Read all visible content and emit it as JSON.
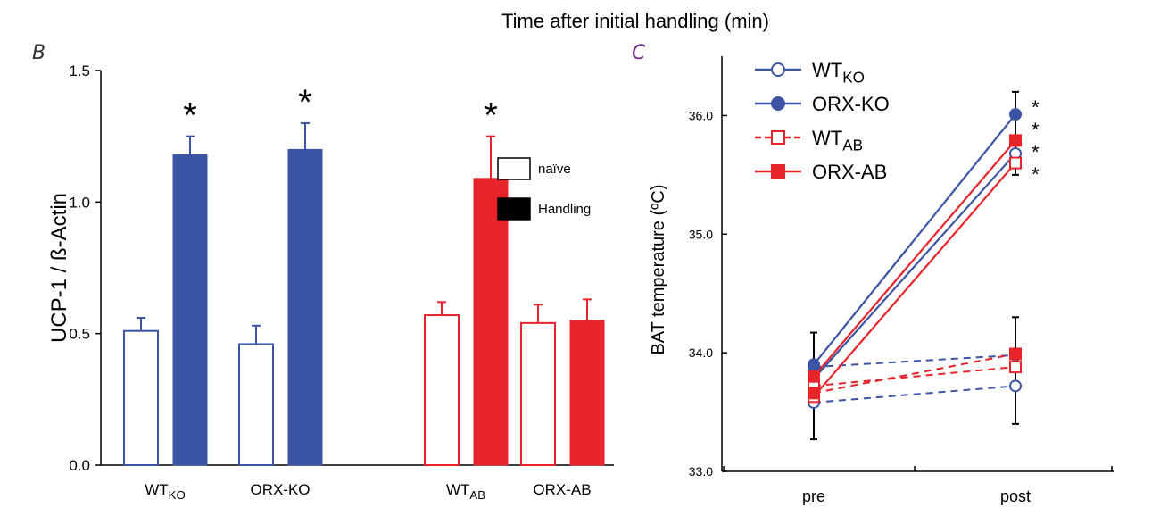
{
  "page_title": "Time after initial handling (min)",
  "colors": {
    "blue": "#3b55a4",
    "red": "#e8242b",
    "axis": "#000000"
  },
  "chart_data": [
    {
      "panel": "B",
      "type": "bar",
      "ylabel": "UCP-1 / ß-Actin",
      "ylim": [
        0,
        1.5
      ],
      "yticks": [
        0.0,
        0.5,
        1.0,
        1.5
      ],
      "ytick_labels": [
        "0.0",
        "0.5",
        "1.0",
        "1.5"
      ],
      "groups": [
        {
          "label": "WT",
          "sub": "KO",
          "color": "blue",
          "naive": 0.51,
          "naive_err": 0.05,
          "handling": 1.18,
          "handling_err": 0.07,
          "sig": "*"
        },
        {
          "label": "ORX-KO",
          "sub": "",
          "color": "blue",
          "naive": 0.46,
          "naive_err": 0.07,
          "handling": 1.2,
          "handling_err": 0.1,
          "sig": "*"
        },
        {
          "label": "WT",
          "sub": "AB",
          "color": "red",
          "naive": 0.57,
          "naive_err": 0.05,
          "handling": 1.09,
          "handling_err": 0.16,
          "sig": "*"
        },
        {
          "label": "ORX-AB",
          "sub": "",
          "color": "red",
          "naive": 0.54,
          "naive_err": 0.07,
          "handling": 0.55,
          "handling_err": 0.08,
          "sig": ""
        }
      ],
      "legend": [
        {
          "label": "naïve",
          "fill": "none"
        },
        {
          "label": "Handling",
          "fill": "black"
        }
      ],
      "legend_position": "right"
    },
    {
      "panel": "C",
      "type": "line",
      "ylabel": "BAT temperature (ºC)",
      "ylim": [
        33.0,
        36.5
      ],
      "yticks": [
        33.0,
        34.0,
        35.0,
        36.0
      ],
      "ytick_labels": [
        "33.0",
        "34.0",
        "35.0",
        "36.0"
      ],
      "categories": [
        "pre",
        "post"
      ],
      "legend_position": "top-left",
      "series": [
        {
          "name": "WT",
          "sub": "KO",
          "color": "blue",
          "marker": "circle-open",
          "handling": [
            33.78,
            35.68
          ],
          "naive": [
            33.58,
            33.72
          ],
          "sig": "*"
        },
        {
          "name": "ORX-KO",
          "sub": "",
          "color": "blue",
          "marker": "circle-filled",
          "handling": [
            33.9,
            36.01
          ],
          "naive": [
            33.88,
            33.98
          ],
          "sig": "*"
        },
        {
          "name": "WT",
          "sub": "AB",
          "color": "red",
          "marker": "square-open",
          "handling": [
            33.63,
            35.6
          ],
          "naive": [
            33.72,
            33.88
          ],
          "sig": "*"
        },
        {
          "name": "ORX-AB",
          "sub": "",
          "color": "red",
          "marker": "square-filled",
          "handling": [
            33.8,
            35.79
          ],
          "naive": [
            33.66,
            33.99
          ],
          "sig": "*"
        }
      ]
    }
  ]
}
